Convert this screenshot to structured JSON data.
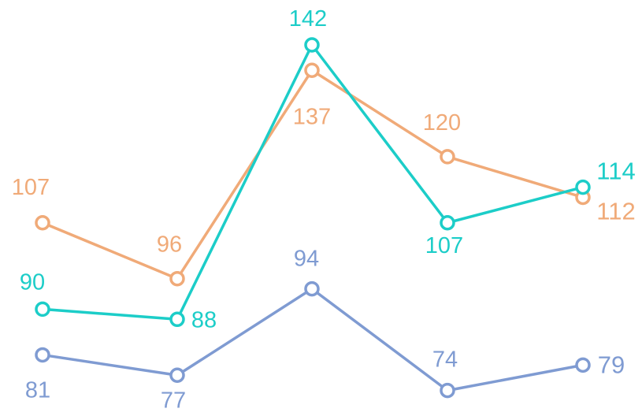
{
  "chart_data": {
    "type": "line",
    "categories": [
      "",
      "",
      "",
      "",
      ""
    ],
    "title": "",
    "xlabel": "",
    "ylabel": "",
    "grid": false,
    "legend": "none",
    "series": [
      {
        "color": "#f0aa78",
        "values": [
          107,
          96,
          137,
          120,
          112
        ],
        "labels": [
          "107",
          "96",
          "137",
          "120",
          "112"
        ]
      },
      {
        "color": "#1ccdc8",
        "values": [
          90,
          88,
          142,
          107,
          114
        ],
        "labels": [
          "90",
          "88",
          "142",
          "107",
          "114"
        ]
      },
      {
        "color": "#7f9bd2",
        "values": [
          81,
          77,
          94,
          74,
          79
        ],
        "labels": [
          "81",
          "77",
          "94",
          "74",
          "79"
        ]
      }
    ]
  }
}
